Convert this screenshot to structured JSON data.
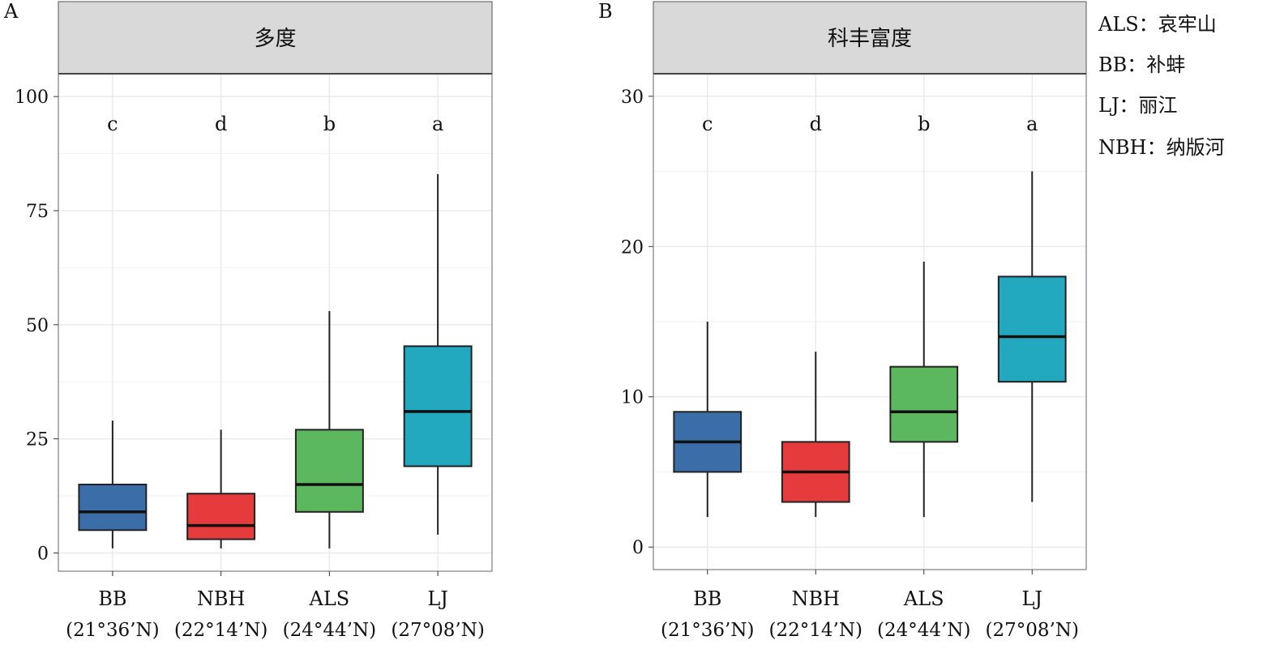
{
  "chart_data": [
    {
      "type": "box",
      "panel_label": "A",
      "title": "多度",
      "ylim": [
        -4,
        105
      ],
      "yticks": [
        0,
        25,
        50,
        75,
        100
      ],
      "categories": [
        "BB",
        "NBH",
        "ALS",
        "LJ"
      ],
      "category_sublabels": [
        "(21°36’N)",
        "(22°14’N)",
        "(24°44’N)",
        "(27°08’N)"
      ],
      "colors": [
        "#3b6ea8",
        "#e53b3c",
        "#5cb85f",
        "#22a8bf"
      ],
      "letters": [
        "c",
        "d",
        "b",
        "a"
      ],
      "boxes": [
        {
          "min": 1,
          "q1": 5,
          "median": 9,
          "q3": 15,
          "max": 29
        },
        {
          "min": 1,
          "q1": 3,
          "median": 6,
          "q3": 13,
          "max": 27
        },
        {
          "min": 1,
          "q1": 9,
          "median": 15,
          "q3": 27,
          "max": 53
        },
        {
          "min": 4,
          "q1": 19,
          "median": 31,
          "q3": 45.3,
          "max": 83
        }
      ]
    },
    {
      "type": "box",
      "panel_label": "B",
      "title": "科丰富度",
      "ylim": [
        -1.5,
        31.5
      ],
      "yticks": [
        0,
        10,
        20,
        30
      ],
      "categories": [
        "BB",
        "NBH",
        "ALS",
        "LJ"
      ],
      "category_sublabels": [
        "(21°36’N)",
        "(22°14’N)",
        "(24°44’N)",
        "(27°08’N)"
      ],
      "colors": [
        "#3b6ea8",
        "#e53b3c",
        "#5cb85f",
        "#22a8bf"
      ],
      "letters": [
        "c",
        "d",
        "b",
        "a"
      ],
      "boxes": [
        {
          "min": 2,
          "q1": 5,
          "median": 7,
          "q3": 9,
          "max": 15
        },
        {
          "min": 2,
          "q1": 3,
          "median": 5,
          "q3": 7,
          "max": 13
        },
        {
          "min": 2,
          "q1": 7,
          "median": 9,
          "q3": 12,
          "max": 19
        },
        {
          "min": 3,
          "q1": 11,
          "median": 14,
          "q3": 18,
          "max": 25
        }
      ]
    }
  ],
  "legend": [
    "ALS：哀牢山",
    "BB：补蚌",
    "LJ：丽江",
    "NBH：纳版河"
  ]
}
